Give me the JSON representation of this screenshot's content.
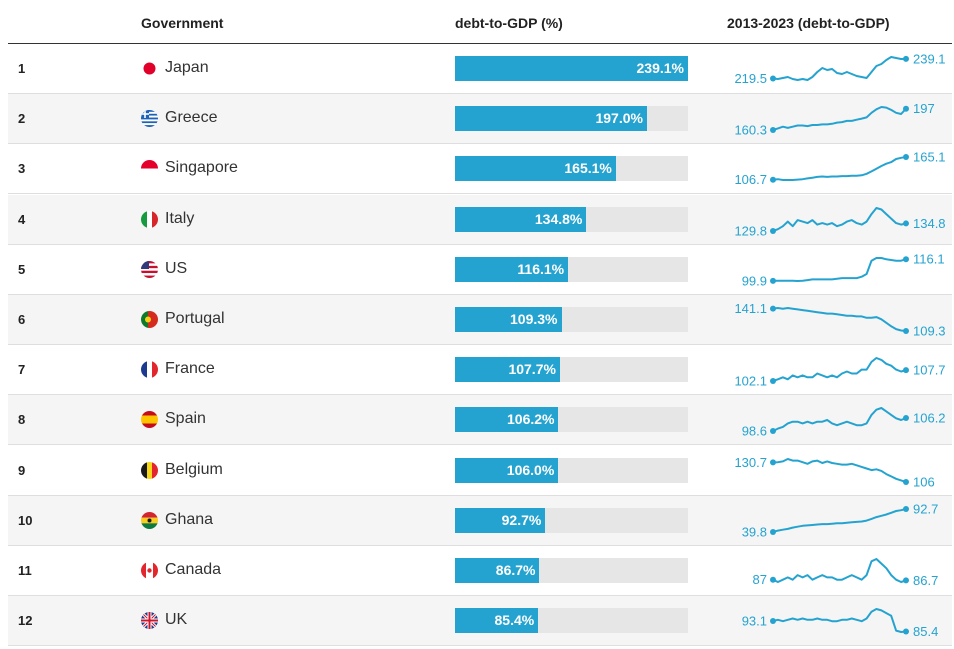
{
  "header": {
    "col_government": "Government",
    "col_bar": "debt-to-GDP (%)",
    "col_spark": "2013-2023 (debt-to-GDP)"
  },
  "colors": {
    "accent": "#25a3d0",
    "track": "#e6e6e6"
  },
  "chart_data": {
    "type": "table",
    "bar_max": 239.1,
    "rows": [
      {
        "rank": "1",
        "country": "Japan",
        "flag": "japan",
        "value": 239.1,
        "label": "239.1%",
        "start": 219.5,
        "end": 239.1,
        "start_label": "219.5",
        "end_label": "239.1",
        "trend": [
          219.5,
          219,
          220,
          221,
          219,
          218,
          219,
          218,
          221,
          226,
          230,
          228,
          229,
          225,
          224,
          226,
          224,
          222,
          221,
          220,
          226,
          232,
          234,
          238,
          241,
          240,
          239,
          239.1
        ]
      },
      {
        "rank": "2",
        "country": "Greece",
        "flag": "greece",
        "value": 197.0,
        "label": "197.0%",
        "start": 160.3,
        "end": 197,
        "start_label": "160.3",
        "end_label": "197",
        "trend": [
          160.3,
          163,
          166,
          164,
          166,
          168,
          168,
          167,
          169,
          169,
          170,
          170,
          171,
          173,
          174,
          176,
          176,
          178,
          180,
          182,
          190,
          196,
          200,
          199,
          195,
          190,
          188,
          197
        ]
      },
      {
        "rank": "3",
        "country": "Singapore",
        "flag": "singapore",
        "value": 165.1,
        "label": "165.1%",
        "start": 106.7,
        "end": 165.1,
        "start_label": "106.7",
        "end_label": "165.1",
        "trend": [
          106.7,
          108,
          106,
          106,
          106,
          107,
          108,
          110,
          112,
          114,
          115,
          114,
          115,
          115,
          116,
          116,
          117,
          117,
          118,
          122,
          128,
          135,
          142,
          148,
          152,
          160,
          163,
          165.1
        ]
      },
      {
        "rank": "4",
        "country": "Italy",
        "flag": "italy",
        "value": 134.8,
        "label": "134.8%",
        "start": 129.8,
        "end": 134.8,
        "start_label": "129.8",
        "end_label": "134.8",
        "trend": [
          129.8,
          131,
          133,
          136,
          133,
          137,
          136,
          135,
          137,
          134,
          135,
          134,
          135,
          133,
          134,
          136,
          137,
          135,
          134,
          136,
          141,
          145,
          144,
          141,
          138,
          135,
          134,
          134.8
        ]
      },
      {
        "rank": "5",
        "country": "US",
        "flag": "us",
        "value": 116.1,
        "label": "116.1%",
        "start": 99.9,
        "end": 116.1,
        "start_label": "99.9",
        "end_label": "116.1",
        "trend": [
          99.9,
          100,
          100,
          100,
          100,
          99.8,
          100,
          100.5,
          101,
          101,
          101,
          101,
          101,
          101.5,
          102,
          102,
          102,
          102,
          103,
          105,
          115,
          117,
          117,
          116,
          115.5,
          115,
          115,
          116.1
        ]
      },
      {
        "rank": "6",
        "country": "Portugal",
        "flag": "portugal",
        "value": 109.3,
        "label": "109.3%",
        "start": 141.1,
        "end": 109.3,
        "start_label": "141.1",
        "end_label": "109.3",
        "trend": [
          141.1,
          142,
          141,
          142,
          141,
          140,
          139,
          138,
          137,
          136,
          135,
          134,
          134,
          133,
          132,
          131,
          131,
          130,
          130,
          128,
          128,
          129,
          126,
          121,
          116,
          112,
          110,
          109.3
        ]
      },
      {
        "rank": "7",
        "country": "France",
        "flag": "france",
        "value": 107.7,
        "label": "107.7%",
        "start": 102.1,
        "end": 107.7,
        "start_label": "102.1",
        "end_label": "107.7",
        "trend": [
          102.1,
          103,
          104,
          103,
          105,
          104,
          105,
          104,
          104,
          106,
          105,
          104,
          105,
          104,
          106,
          107,
          106,
          106,
          108,
          108,
          112,
          114,
          113,
          111,
          110,
          108,
          107,
          107.7
        ]
      },
      {
        "rank": "8",
        "country": "Spain",
        "flag": "spain",
        "value": 106.2,
        "label": "106.2%",
        "start": 98.6,
        "end": 106.2,
        "start_label": "98.6",
        "end_label": "106.2",
        "trend": [
          98.6,
          100,
          101,
          103,
          104,
          104,
          103,
          104,
          103,
          104,
          104,
          105,
          103,
          102,
          103,
          104,
          103,
          102,
          102,
          103,
          108,
          111,
          112,
          110,
          108,
          106,
          105,
          106.2
        ]
      },
      {
        "rank": "9",
        "country": "Belgium",
        "flag": "belgium",
        "value": 106.0,
        "label": "106.0%",
        "start": 130.7,
        "end": 106,
        "start_label": "130.7",
        "end_label": "106",
        "trend": [
          130.7,
          131,
          132,
          135,
          133,
          133,
          131,
          129,
          132,
          133,
          130,
          132,
          130,
          129,
          128,
          128,
          129,
          127,
          125,
          123,
          121,
          122,
          120,
          116,
          113,
          110,
          108,
          106
        ]
      },
      {
        "rank": "10",
        "country": "Ghana",
        "flag": "ghana",
        "value": 92.7,
        "label": "92.7%",
        "start": 39.8,
        "end": 92.7,
        "start_label": "39.8",
        "end_label": "92.7",
        "trend": [
          39.8,
          43,
          45,
          47,
          50,
          52,
          54,
          55,
          56,
          57,
          58,
          58,
          59,
          60,
          60,
          61,
          62,
          63,
          64,
          66,
          70,
          74,
          77,
          80,
          84,
          88,
          90,
          92.7
        ]
      },
      {
        "rank": "11",
        "country": "Canada",
        "flag": "canada",
        "value": 86.7,
        "label": "86.7%",
        "start": 87,
        "end": 86.7,
        "start_label": "87",
        "end_label": "86.7",
        "trend": [
          87,
          86,
          87,
          88,
          87,
          89,
          88,
          89,
          87,
          88,
          89,
          88,
          88,
          87,
          87,
          88,
          89,
          88,
          87,
          89,
          95,
          96,
          94,
          92,
          89,
          87,
          86,
          86.7
        ]
      },
      {
        "rank": "12",
        "country": "UK",
        "flag": "uk",
        "value": 85.4,
        "label": "85.4%",
        "start": 93.1,
        "end": 85.4,
        "start_label": "93.1",
        "end_label": "85.4",
        "trend": [
          93.1,
          94,
          93,
          94,
          95,
          94,
          95,
          94,
          94,
          95,
          94,
          94,
          93,
          93,
          94,
          94,
          95,
          94,
          93,
          95,
          100,
          102,
          101,
          99,
          97,
          86,
          85,
          85.4
        ]
      }
    ]
  }
}
